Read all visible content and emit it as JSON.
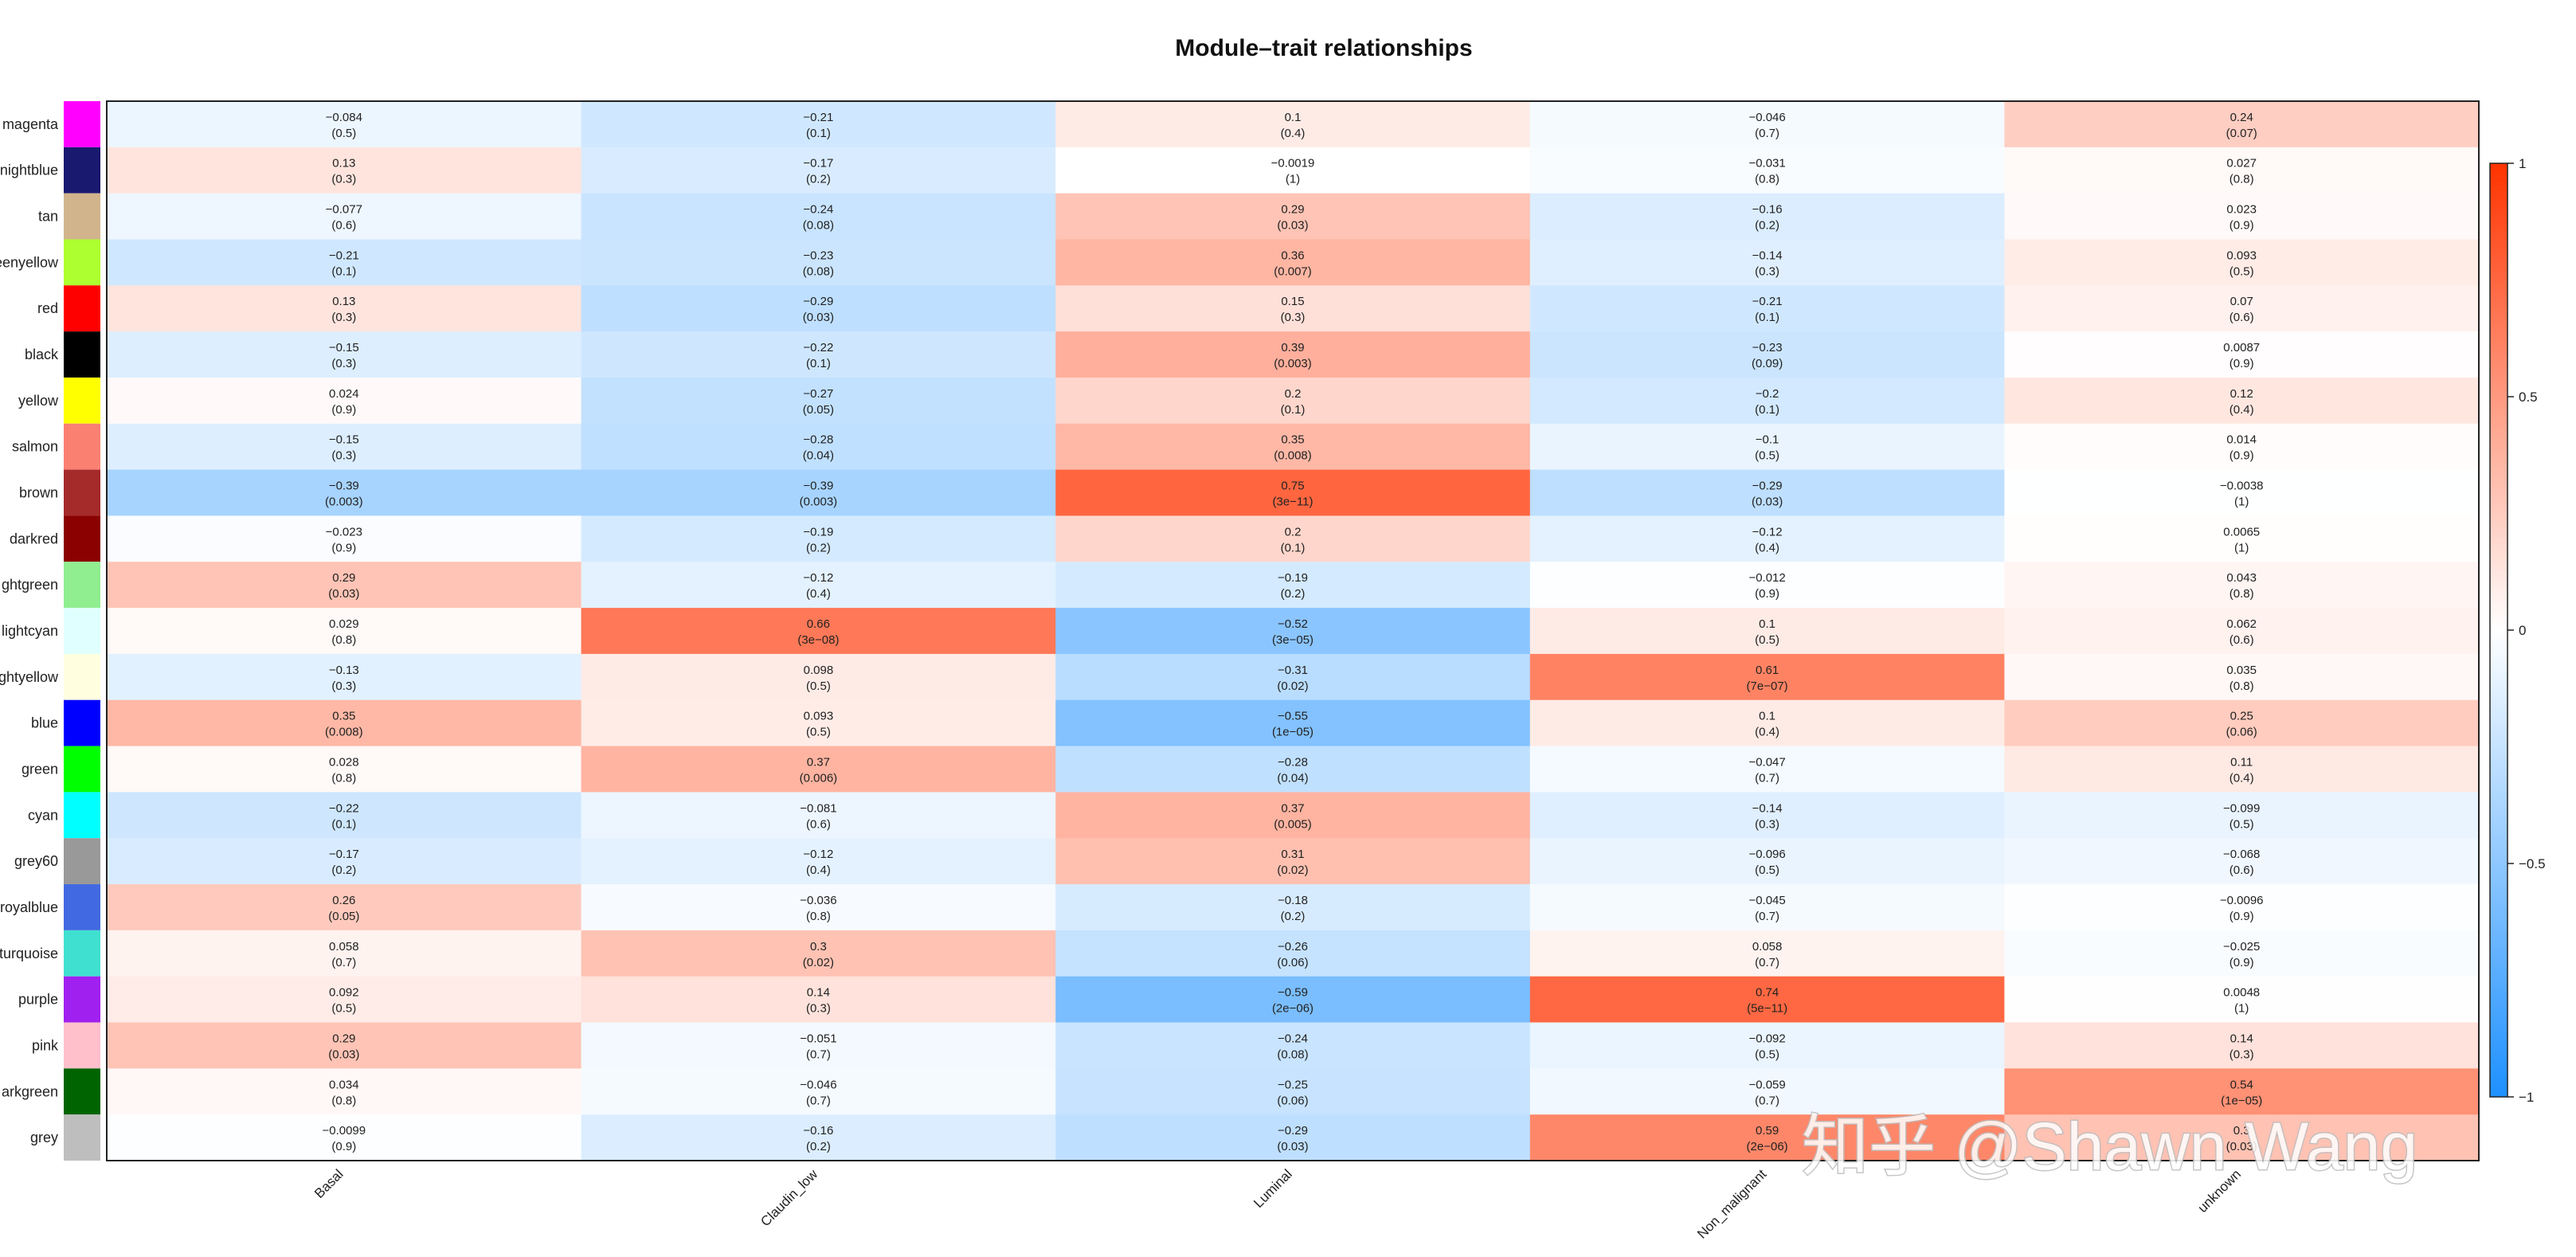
{
  "watermark": "知乎 @Shawn Wang",
  "chart_data": {
    "type": "heatmap",
    "title": "Module–trait relationships",
    "columns": [
      "Basal",
      "Claudin_low",
      "Luminal",
      "Non_malignant",
      "unknown"
    ],
    "rows": [
      {
        "module": "magenta",
        "color": "#ff00ff",
        "label": "magenta",
        "values": [
          -0.084,
          -0.21,
          0.1,
          -0.046,
          0.24
        ],
        "value_text": [
          "−0.084",
          "−0.21",
          "0.1",
          "−0.046",
          "0.24"
        ],
        "p_text": [
          "(0.5)",
          "(0.1)",
          "(0.4)",
          "(0.7)",
          "(0.07)"
        ]
      },
      {
        "module": "midnightblue",
        "color": "#191970",
        "label": "nightblue",
        "values": [
          0.13,
          -0.17,
          -0.0019,
          -0.031,
          0.027
        ],
        "value_text": [
          "0.13",
          "−0.17",
          "−0.0019",
          "−0.031",
          "0.027"
        ],
        "p_text": [
          "(0.3)",
          "(0.2)",
          "(1)",
          "(0.8)",
          "(0.8)"
        ]
      },
      {
        "module": "tan",
        "color": "#d2b48c",
        "label": "tan",
        "values": [
          -0.077,
          -0.24,
          0.29,
          -0.16,
          0.023
        ],
        "value_text": [
          "−0.077",
          "−0.24",
          "0.29",
          "−0.16",
          "0.023"
        ],
        "p_text": [
          "(0.6)",
          "(0.08)",
          "(0.03)",
          "(0.2)",
          "(0.9)"
        ]
      },
      {
        "module": "greenyellow",
        "color": "#adff2f",
        "label": "eenyellow",
        "values": [
          -0.21,
          -0.23,
          0.36,
          -0.14,
          0.093
        ],
        "value_text": [
          "−0.21",
          "−0.23",
          "0.36",
          "−0.14",
          "0.093"
        ],
        "p_text": [
          "(0.1)",
          "(0.08)",
          "(0.007)",
          "(0.3)",
          "(0.5)"
        ]
      },
      {
        "module": "red",
        "color": "#ff0000",
        "label": "red",
        "values": [
          0.13,
          -0.29,
          0.15,
          -0.21,
          0.07
        ],
        "value_text": [
          "0.13",
          "−0.29",
          "0.15",
          "−0.21",
          "0.07"
        ],
        "p_text": [
          "(0.3)",
          "(0.03)",
          "(0.3)",
          "(0.1)",
          "(0.6)"
        ]
      },
      {
        "module": "black",
        "color": "#000000",
        "label": "black",
        "values": [
          -0.15,
          -0.22,
          0.39,
          -0.23,
          0.0087
        ],
        "value_text": [
          "−0.15",
          "−0.22",
          "0.39",
          "−0.23",
          "0.0087"
        ],
        "p_text": [
          "(0.3)",
          "(0.1)",
          "(0.003)",
          "(0.09)",
          "(0.9)"
        ]
      },
      {
        "module": "yellow",
        "color": "#ffff00",
        "label": "yellow",
        "values": [
          0.024,
          -0.27,
          0.2,
          -0.2,
          0.12
        ],
        "value_text": [
          "0.024",
          "−0.27",
          "0.2",
          "−0.2",
          "0.12"
        ],
        "p_text": [
          "(0.9)",
          "(0.05)",
          "(0.1)",
          "(0.1)",
          "(0.4)"
        ]
      },
      {
        "module": "salmon",
        "color": "#fa8072",
        "label": "salmon",
        "values": [
          -0.15,
          -0.28,
          0.35,
          -0.1,
          0.014
        ],
        "value_text": [
          "−0.15",
          "−0.28",
          "0.35",
          "−0.1",
          "0.014"
        ],
        "p_text": [
          "(0.3)",
          "(0.04)",
          "(0.008)",
          "(0.5)",
          "(0.9)"
        ]
      },
      {
        "module": "brown",
        "color": "#a52a2a",
        "label": "brown",
        "values": [
          -0.39,
          -0.39,
          0.75,
          -0.29,
          -0.0038
        ],
        "value_text": [
          "−0.39",
          "−0.39",
          "0.75",
          "−0.29",
          "−0.0038"
        ],
        "p_text": [
          "(0.003)",
          "(0.003)",
          "(3e−11)",
          "(0.03)",
          "(1)"
        ]
      },
      {
        "module": "darkred",
        "color": "#8b0000",
        "label": "darkred",
        "values": [
          -0.023,
          -0.19,
          0.2,
          -0.12,
          0.0065
        ],
        "value_text": [
          "−0.023",
          "−0.19",
          "0.2",
          "−0.12",
          "0.0065"
        ],
        "p_text": [
          "(0.9)",
          "(0.2)",
          "(0.1)",
          "(0.4)",
          "(1)"
        ]
      },
      {
        "module": "lightgreen",
        "color": "#90ee90",
        "label": "ghtgreen",
        "values": [
          0.29,
          -0.12,
          -0.19,
          -0.012,
          0.043
        ],
        "value_text": [
          "0.29",
          "−0.12",
          "−0.19",
          "−0.012",
          "0.043"
        ],
        "p_text": [
          "(0.03)",
          "(0.4)",
          "(0.2)",
          "(0.9)",
          "(0.8)"
        ]
      },
      {
        "module": "lightcyan",
        "color": "#e0ffff",
        "label": "lightcyan",
        "values": [
          0.029,
          0.66,
          -0.52,
          0.1,
          0.062
        ],
        "value_text": [
          "0.029",
          "0.66",
          "−0.52",
          "0.1",
          "0.062"
        ],
        "p_text": [
          "(0.8)",
          "(3e−08)",
          "(3e−05)",
          "(0.5)",
          "(0.6)"
        ]
      },
      {
        "module": "lightyellow",
        "color": "#ffffe0",
        "label": "ghtyellow",
        "values": [
          -0.13,
          0.098,
          -0.31,
          0.61,
          0.035
        ],
        "value_text": [
          "−0.13",
          "0.098",
          "−0.31",
          "0.61",
          "0.035"
        ],
        "p_text": [
          "(0.3)",
          "(0.5)",
          "(0.02)",
          "(7e−07)",
          "(0.8)"
        ]
      },
      {
        "module": "blue",
        "color": "#0000ff",
        "label": "blue",
        "values": [
          0.35,
          0.093,
          -0.55,
          0.1,
          0.25
        ],
        "value_text": [
          "0.35",
          "0.093",
          "−0.55",
          "0.1",
          "0.25"
        ],
        "p_text": [
          "(0.008)",
          "(0.5)",
          "(1e−05)",
          "(0.4)",
          "(0.06)"
        ]
      },
      {
        "module": "green",
        "color": "#00ff00",
        "label": "green",
        "values": [
          0.028,
          0.37,
          -0.28,
          -0.047,
          0.11
        ],
        "value_text": [
          "0.028",
          "0.37",
          "−0.28",
          "−0.047",
          "0.11"
        ],
        "p_text": [
          "(0.8)",
          "(0.006)",
          "(0.04)",
          "(0.7)",
          "(0.4)"
        ]
      },
      {
        "module": "cyan",
        "color": "#00ffff",
        "label": "cyan",
        "values": [
          -0.22,
          -0.081,
          0.37,
          -0.14,
          -0.099
        ],
        "value_text": [
          "−0.22",
          "−0.081",
          "0.37",
          "−0.14",
          "−0.099"
        ],
        "p_text": [
          "(0.1)",
          "(0.6)",
          "(0.005)",
          "(0.3)",
          "(0.5)"
        ]
      },
      {
        "module": "grey60",
        "color": "#999999",
        "label": "grey60",
        "values": [
          -0.17,
          -0.12,
          0.31,
          -0.096,
          -0.068
        ],
        "value_text": [
          "−0.17",
          "−0.12",
          "0.31",
          "−0.096",
          "−0.068"
        ],
        "p_text": [
          "(0.2)",
          "(0.4)",
          "(0.02)",
          "(0.5)",
          "(0.6)"
        ]
      },
      {
        "module": "royalblue",
        "color": "#4169e1",
        "label": "royalblue",
        "values": [
          0.26,
          -0.036,
          -0.18,
          -0.045,
          -0.0096
        ],
        "value_text": [
          "0.26",
          "−0.036",
          "−0.18",
          "−0.045",
          "−0.0096"
        ],
        "p_text": [
          "(0.05)",
          "(0.8)",
          "(0.2)",
          "(0.7)",
          "(0.9)"
        ]
      },
      {
        "module": "turquoise",
        "color": "#40e0d0",
        "label": "turquoise",
        "values": [
          0.058,
          0.3,
          -0.26,
          0.058,
          -0.025
        ],
        "value_text": [
          "0.058",
          "0.3",
          "−0.26",
          "0.058",
          "−0.025"
        ],
        "p_text": [
          "(0.7)",
          "(0.02)",
          "(0.06)",
          "(0.7)",
          "(0.9)"
        ]
      },
      {
        "module": "purple",
        "color": "#a020f0",
        "label": "purple",
        "values": [
          0.092,
          0.14,
          -0.59,
          0.74,
          0.0048
        ],
        "value_text": [
          "0.092",
          "0.14",
          "−0.59",
          "0.74",
          "0.0048"
        ],
        "p_text": [
          "(0.5)",
          "(0.3)",
          "(2e−06)",
          "(5e−11)",
          "(1)"
        ]
      },
      {
        "module": "pink",
        "color": "#ffc0cb",
        "label": "pink",
        "values": [
          0.29,
          -0.051,
          -0.24,
          -0.092,
          0.14
        ],
        "value_text": [
          "0.29",
          "−0.051",
          "−0.24",
          "−0.092",
          "0.14"
        ],
        "p_text": [
          "(0.03)",
          "(0.7)",
          "(0.08)",
          "(0.5)",
          "(0.3)"
        ]
      },
      {
        "module": "darkgreen",
        "color": "#006400",
        "label": "arkgreen",
        "values": [
          0.034,
          -0.046,
          -0.25,
          -0.059,
          0.54
        ],
        "value_text": [
          "0.034",
          "−0.046",
          "−0.25",
          "−0.059",
          "0.54"
        ],
        "p_text": [
          "(0.8)",
          "(0.7)",
          "(0.06)",
          "(0.7)",
          "(1e−05)"
        ]
      },
      {
        "module": "grey",
        "color": "#bebebe",
        "label": "grey",
        "values": [
          -0.0099,
          -0.16,
          -0.29,
          0.59,
          0.3
        ],
        "value_text": [
          "−0.0099",
          "−0.16",
          "−0.29",
          "0.59",
          "0.3"
        ],
        "p_text": [
          "(0.9)",
          "(0.2)",
          "(0.03)",
          "(2e−06)",
          "(0.03)"
        ]
      }
    ],
    "color_scale": {
      "min": -1,
      "max": 1,
      "low_color": "#1E90FF",
      "mid_color": "#FFFFFF",
      "high_color": "#FF3300"
    },
    "legend": {
      "position": "right",
      "ticks": [
        1,
        0.5,
        0,
        -0.5,
        -1
      ],
      "tick_labels": [
        "1",
        "0.5",
        "0",
        "−0.5",
        "−1"
      ]
    }
  }
}
